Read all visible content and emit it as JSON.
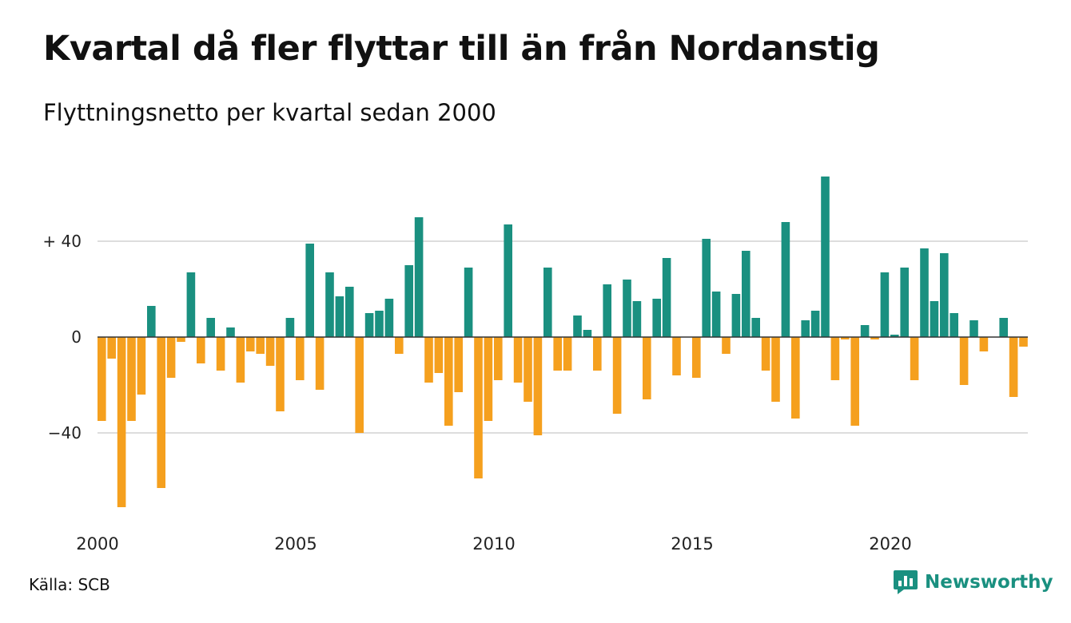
{
  "header": {
    "title": "Kvartal då fler flyttar till än från Nordanstig",
    "subtitle": "Flyttningsnetto per kvartal sedan 2000"
  },
  "footer": {
    "source": "Källa: SCB",
    "brand": "Newsworthy"
  },
  "colors": {
    "positive": "#1a9080",
    "negative": "#f5a01e",
    "grid": "#dddddd",
    "baseline": "#333333"
  },
  "icons": {
    "brand_logo": "newsworthy-logo-icon"
  },
  "chart_data": {
    "type": "bar",
    "title": "Kvartal då fler flyttar till än från Nordanstig",
    "subtitle": "Flyttningsnetto per kvartal sedan 2000",
    "xlabel": "",
    "ylabel": "",
    "start_year": 2000,
    "periods_per_year": 4,
    "x_tick_labels": [
      "2000",
      "2005",
      "2010",
      "2015",
      "2020"
    ],
    "y_ticks": [
      40,
      0,
      -40
    ],
    "y_tick_labels": [
      "+ 40",
      "0",
      "−40"
    ],
    "ylim": [
      -75,
      70
    ],
    "grid": true,
    "legend": "none",
    "values": [
      -35,
      -9,
      -71,
      -35,
      -24,
      13,
      -63,
      -17,
      -2,
      27,
      -11,
      8,
      -14,
      4,
      -19,
      -6,
      -7,
      -12,
      -31,
      8,
      -18,
      39,
      -22,
      27,
      17,
      21,
      -40,
      10,
      11,
      16,
      -7,
      30,
      50,
      -19,
      -15,
      -37,
      -23,
      29,
      -59,
      -35,
      -18,
      47,
      -19,
      -27,
      -41,
      29,
      -14,
      -14,
      9,
      3,
      -14,
      22,
      -32,
      24,
      15,
      -26,
      16,
      33,
      -16,
      0,
      -17,
      41,
      19,
      -7,
      18,
      36,
      8,
      -14,
      -27,
      48,
      -34,
      7,
      11,
      67,
      -18,
      -1,
      -37,
      5,
      -1,
      27,
      1,
      29,
      -18,
      37,
      15,
      35,
      10,
      -20,
      7,
      -6,
      0,
      8,
      -25,
      -4
    ]
  }
}
